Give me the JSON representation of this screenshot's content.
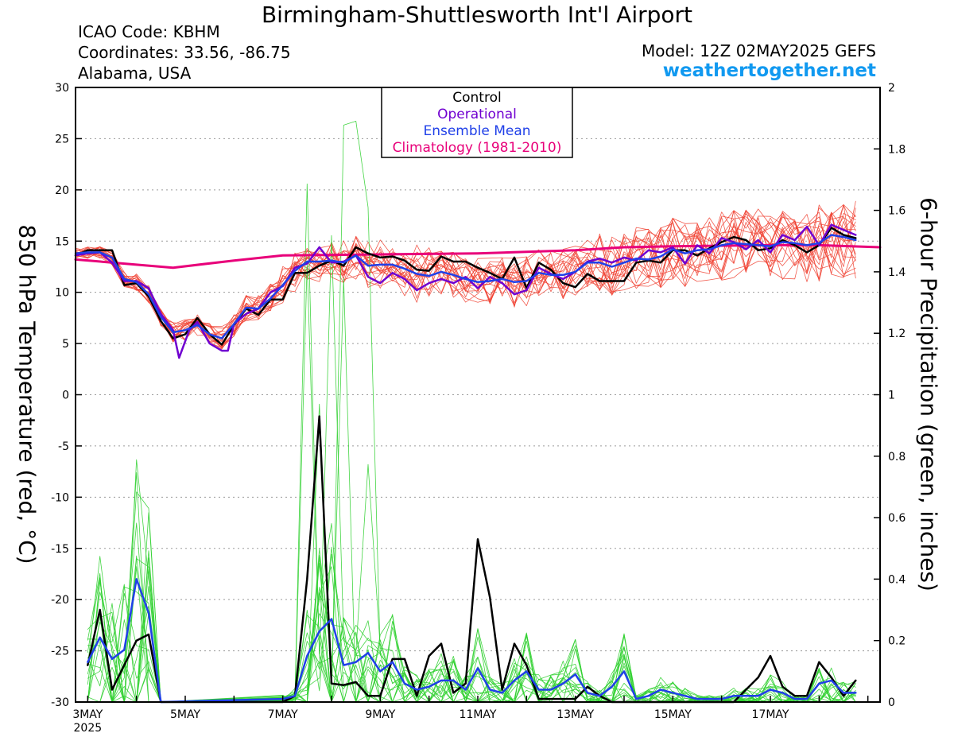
{
  "header": {
    "title": "Birmingham-Shuttlesworth Int'l Airport",
    "icao": "ICAO Code: KBHM",
    "coordinates": "Coordinates: 33.56, -86.75",
    "region": "Alabama, USA",
    "model": "Model: 12Z 02MAY2025 GEFS",
    "site": "weathertogether.net"
  },
  "colors": {
    "control": "#000000",
    "operational": "#7000D0",
    "ensemble_mean": "#2040E8",
    "climatology": "#E8007A",
    "temperature_members": "#F04030",
    "precip_members": "#30D030",
    "site": "#1199F0"
  },
  "chart_data": {
    "type": "line",
    "x_unit": "hours since 03MAY 00Z",
    "x_range": [
      -6,
      390
    ],
    "x_ticks": [
      {
        "x": 0,
        "label": "3MAY",
        "sub": "2025"
      },
      {
        "x": 48,
        "label": "5MAY",
        "sub": ""
      },
      {
        "x": 96,
        "label": "7MAY",
        "sub": ""
      },
      {
        "x": 144,
        "label": "9MAY",
        "sub": ""
      },
      {
        "x": 192,
        "label": "11MAY",
        "sub": ""
      },
      {
        "x": 240,
        "label": "13MAY",
        "sub": ""
      },
      {
        "x": 288,
        "label": "15MAY",
        "sub": ""
      },
      {
        "x": 336,
        "label": "17MAY",
        "sub": ""
      }
    ],
    "ylabel_left": "850 hPa Temperature (red, °C)",
    "ylabel_right": "6-hour Precipitation (green, inches)",
    "ylim_left": [
      -30,
      30
    ],
    "yticks_left": [
      30,
      25,
      20,
      15,
      10,
      5,
      0,
      -5,
      -10,
      -15,
      -20,
      -25,
      -30
    ],
    "ylim_right": [
      0,
      2
    ],
    "yticks_right": [
      "2",
      "1.8",
      "1.6",
      "1.4",
      "1.2",
      "1",
      "0.8",
      "0.6",
      "0.4",
      "0.2",
      "0"
    ],
    "legend": [
      "Control",
      "Operational",
      "Ensemble Mean",
      "Climatology (1981-2010)"
    ],
    "legend_position": "top-center",
    "grid": "horizontal dotted",
    "temperature": {
      "climatology": [
        [
          -6,
          13.2
        ],
        [
          42,
          12.4
        ],
        [
          72,
          13.1
        ],
        [
          96,
          13.6
        ],
        [
          144,
          13.7
        ],
        [
          192,
          13.8
        ],
        [
          240,
          14.1
        ],
        [
          264,
          14.4
        ],
        [
          288,
          14.5
        ],
        [
          336,
          14.6
        ],
        [
          360,
          14.6
        ],
        [
          390,
          14.4
        ]
      ],
      "control": [
        [
          -6,
          13.6
        ],
        [
          0,
          14.1
        ],
        [
          12,
          14.1
        ],
        [
          18,
          10.7
        ],
        [
          24,
          10.9
        ],
        [
          30,
          9.6
        ],
        [
          36,
          7.2
        ],
        [
          42,
          5.5
        ],
        [
          48,
          5.9
        ],
        [
          54,
          7.5
        ],
        [
          60,
          5.9
        ],
        [
          66,
          4.9
        ],
        [
          72,
          6.8
        ],
        [
          78,
          8.4
        ],
        [
          84,
          7.8
        ],
        [
          90,
          9.3
        ],
        [
          96,
          9.3
        ],
        [
          102,
          11.9
        ],
        [
          108,
          11.9
        ],
        [
          114,
          12.6
        ],
        [
          120,
          13.1
        ],
        [
          126,
          12.6
        ],
        [
          132,
          14.4
        ],
        [
          138,
          13.8
        ],
        [
          144,
          13.4
        ],
        [
          150,
          13.5
        ],
        [
          156,
          13.1
        ],
        [
          162,
          12.2
        ],
        [
          168,
          12.1
        ],
        [
          174,
          13.5
        ],
        [
          180,
          13.0
        ],
        [
          186,
          13.0
        ],
        [
          192,
          12.4
        ],
        [
          198,
          11.9
        ],
        [
          204,
          11.3
        ],
        [
          210,
          13.4
        ],
        [
          216,
          10.4
        ],
        [
          222,
          12.9
        ],
        [
          228,
          12.2
        ],
        [
          234,
          10.9
        ],
        [
          240,
          10.5
        ],
        [
          246,
          11.8
        ],
        [
          252,
          11.1
        ],
        [
          258,
          11.1
        ],
        [
          264,
          11.1
        ],
        [
          270,
          12.9
        ],
        [
          276,
          13.1
        ],
        [
          282,
          12.9
        ],
        [
          288,
          14.1
        ],
        [
          294,
          14.1
        ],
        [
          300,
          13.6
        ],
        [
          306,
          14.3
        ],
        [
          312,
          14.9
        ],
        [
          318,
          15.4
        ],
        [
          324,
          15.1
        ],
        [
          330,
          14.1
        ],
        [
          336,
          14.3
        ],
        [
          342,
          15.1
        ],
        [
          348,
          14.6
        ],
        [
          354,
          13.9
        ],
        [
          360,
          14.6
        ],
        [
          366,
          16.3
        ],
        [
          372,
          15.6
        ],
        [
          378,
          15.3
        ]
      ],
      "operational": [
        [
          -6,
          13.6
        ],
        [
          0,
          13.8
        ],
        [
          6,
          13.9
        ],
        [
          12,
          12.9
        ],
        [
          18,
          11.1
        ],
        [
          24,
          11.1
        ],
        [
          30,
          10.4
        ],
        [
          36,
          7.9
        ],
        [
          42,
          6.3
        ],
        [
          45,
          3.6
        ],
        [
          50,
          6.3
        ],
        [
          54,
          7.1
        ],
        [
          60,
          5.0
        ],
        [
          66,
          4.3
        ],
        [
          69,
          4.3
        ],
        [
          72,
          6.9
        ],
        [
          78,
          7.9
        ],
        [
          84,
          8.4
        ],
        [
          90,
          10.0
        ],
        [
          96,
          10.6
        ],
        [
          102,
          12.4
        ],
        [
          108,
          12.8
        ],
        [
          114,
          14.4
        ],
        [
          120,
          12.9
        ],
        [
          126,
          13.0
        ],
        [
          132,
          13.6
        ],
        [
          138,
          11.5
        ],
        [
          144,
          10.9
        ],
        [
          150,
          11.9
        ],
        [
          156,
          11.3
        ],
        [
          162,
          10.2
        ],
        [
          168,
          10.9
        ],
        [
          174,
          11.3
        ],
        [
          180,
          10.9
        ],
        [
          186,
          11.5
        ],
        [
          192,
          10.4
        ],
        [
          198,
          11.5
        ],
        [
          204,
          10.9
        ],
        [
          210,
          9.8
        ],
        [
          216,
          10.2
        ],
        [
          222,
          12.4
        ],
        [
          228,
          11.8
        ],
        [
          234,
          11.3
        ],
        [
          240,
          12.0
        ],
        [
          246,
          13.0
        ],
        [
          252,
          13.3
        ],
        [
          258,
          12.9
        ],
        [
          264,
          13.4
        ],
        [
          270,
          13.1
        ],
        [
          276,
          14.1
        ],
        [
          282,
          13.9
        ],
        [
          288,
          14.4
        ],
        [
          294,
          12.8
        ],
        [
          300,
          14.6
        ],
        [
          306,
          13.8
        ],
        [
          312,
          15.3
        ],
        [
          318,
          14.9
        ],
        [
          324,
          14.2
        ],
        [
          330,
          15.1
        ],
        [
          336,
          13.9
        ],
        [
          342,
          15.6
        ],
        [
          348,
          15.1
        ],
        [
          354,
          16.4
        ],
        [
          360,
          14.6
        ],
        [
          366,
          16.6
        ],
        [
          372,
          16.1
        ],
        [
          378,
          15.6
        ]
      ],
      "ensemble_mean": [
        [
          -6,
          13.8
        ],
        [
          0,
          13.9
        ],
        [
          6,
          13.9
        ],
        [
          12,
          13.4
        ],
        [
          18,
          11.3
        ],
        [
          24,
          11.0
        ],
        [
          30,
          9.8
        ],
        [
          36,
          7.6
        ],
        [
          42,
          6.1
        ],
        [
          48,
          6.3
        ],
        [
          54,
          6.8
        ],
        [
          60,
          5.9
        ],
        [
          66,
          5.5
        ],
        [
          72,
          6.9
        ],
        [
          78,
          8.5
        ],
        [
          84,
          8.4
        ],
        [
          90,
          9.4
        ],
        [
          96,
          10.7
        ],
        [
          102,
          12.1
        ],
        [
          108,
          13.0
        ],
        [
          114,
          13.0
        ],
        [
          120,
          13.1
        ],
        [
          126,
          12.9
        ],
        [
          132,
          13.6
        ],
        [
          138,
          12.6
        ],
        [
          144,
          12.7
        ],
        [
          150,
          12.7
        ],
        [
          156,
          12.3
        ],
        [
          162,
          11.8
        ],
        [
          168,
          11.6
        ],
        [
          174,
          12.0
        ],
        [
          180,
          11.7
        ],
        [
          186,
          11.3
        ],
        [
          192,
          11.0
        ],
        [
          198,
          11.1
        ],
        [
          204,
          11.3
        ],
        [
          210,
          11.0
        ],
        [
          216,
          11.1
        ],
        [
          222,
          11.9
        ],
        [
          228,
          11.7
        ],
        [
          234,
          11.7
        ],
        [
          240,
          12.0
        ],
        [
          246,
          12.9
        ],
        [
          252,
          12.9
        ],
        [
          258,
          12.5
        ],
        [
          264,
          12.9
        ],
        [
          270,
          13.3
        ],
        [
          276,
          13.2
        ],
        [
          282,
          13.5
        ],
        [
          288,
          14.2
        ],
        [
          294,
          13.8
        ],
        [
          300,
          14.1
        ],
        [
          306,
          14.2
        ],
        [
          312,
          14.6
        ],
        [
          318,
          14.8
        ],
        [
          324,
          14.7
        ],
        [
          330,
          14.6
        ],
        [
          336,
          14.5
        ],
        [
          342,
          14.9
        ],
        [
          348,
          14.8
        ],
        [
          354,
          14.6
        ],
        [
          360,
          14.8
        ],
        [
          366,
          15.6
        ],
        [
          372,
          15.4
        ],
        [
          378,
          15.1
        ]
      ]
    },
    "precipitation": {
      "control": [
        [
          0,
          0.12
        ],
        [
          6,
          0.3
        ],
        [
          12,
          0.04
        ],
        [
          18,
          0.12
        ],
        [
          24,
          0.2
        ],
        [
          30,
          0.22
        ],
        [
          36,
          0
        ],
        [
          96,
          0
        ],
        [
          102,
          0.02
        ],
        [
          108,
          0.4
        ],
        [
          114,
          0.93
        ],
        [
          120,
          0.06
        ],
        [
          126,
          0.055
        ],
        [
          132,
          0.065
        ],
        [
          138,
          0.02
        ],
        [
          144,
          0.02
        ],
        [
          150,
          0.14
        ],
        [
          156,
          0.14
        ],
        [
          162,
          0.02
        ],
        [
          168,
          0.15
        ],
        [
          174,
          0.19
        ],
        [
          180,
          0.03
        ],
        [
          186,
          0.06
        ],
        [
          192,
          0.53
        ],
        [
          198,
          0.34
        ],
        [
          204,
          0.04
        ],
        [
          210,
          0.19
        ],
        [
          216,
          0.12
        ],
        [
          222,
          0.01
        ],
        [
          240,
          0.01
        ],
        [
          246,
          0.05
        ],
        [
          252,
          0.02
        ],
        [
          258,
          0
        ],
        [
          318,
          0
        ],
        [
          324,
          0.04
        ],
        [
          330,
          0.08
        ],
        [
          336,
          0.15
        ],
        [
          342,
          0.05
        ],
        [
          348,
          0.02
        ],
        [
          354,
          0.02
        ],
        [
          360,
          0.13
        ],
        [
          366,
          0.08
        ],
        [
          372,
          0.02
        ],
        [
          378,
          0.07
        ]
      ],
      "ensemble_mean": [
        [
          0,
          0.13
        ],
        [
          6,
          0.21
        ],
        [
          12,
          0.14
        ],
        [
          18,
          0.17
        ],
        [
          24,
          0.4
        ],
        [
          30,
          0.29
        ],
        [
          36,
          0
        ],
        [
          96,
          0.01
        ],
        [
          102,
          0.02
        ],
        [
          108,
          0.15
        ],
        [
          114,
          0.23
        ],
        [
          120,
          0.27
        ],
        [
          126,
          0.12
        ],
        [
          132,
          0.13
        ],
        [
          138,
          0.16
        ],
        [
          144,
          0.1
        ],
        [
          150,
          0.13
        ],
        [
          156,
          0.06
        ],
        [
          162,
          0.04
        ],
        [
          168,
          0.05
        ],
        [
          174,
          0.07
        ],
        [
          180,
          0.07
        ],
        [
          186,
          0.04
        ],
        [
          192,
          0.11
        ],
        [
          198,
          0.04
        ],
        [
          204,
          0.03
        ],
        [
          210,
          0.07
        ],
        [
          216,
          0.1
        ],
        [
          222,
          0.04
        ],
        [
          228,
          0.04
        ],
        [
          234,
          0.06
        ],
        [
          240,
          0.09
        ],
        [
          246,
          0.03
        ],
        [
          252,
          0.02
        ],
        [
          258,
          0.05
        ],
        [
          264,
          0.1
        ],
        [
          270,
          0.01
        ],
        [
          276,
          0.02
        ],
        [
          282,
          0.04
        ],
        [
          288,
          0.03
        ],
        [
          294,
          0.02
        ],
        [
          300,
          0.01
        ],
        [
          306,
          0.01
        ],
        [
          312,
          0.01
        ],
        [
          318,
          0.02
        ],
        [
          324,
          0.02
        ],
        [
          330,
          0.02
        ],
        [
          336,
          0.04
        ],
        [
          342,
          0.03
        ],
        [
          348,
          0.01
        ],
        [
          354,
          0.01
        ],
        [
          360,
          0.06
        ],
        [
          366,
          0.07
        ],
        [
          372,
          0.03
        ],
        [
          378,
          0.03
        ]
      ]
    }
  }
}
